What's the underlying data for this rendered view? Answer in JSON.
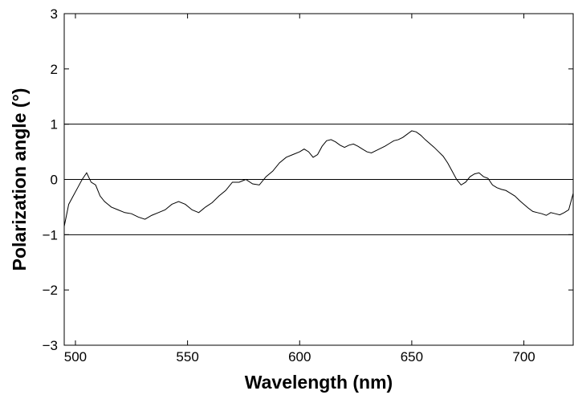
{
  "chart_data": {
    "type": "line",
    "xlabel": "Wavelength (nm)",
    "ylabel": "Polarization angle (°)",
    "xlim": [
      495,
      722
    ],
    "ylim": [
      -3,
      3
    ],
    "x_ticks": [
      500,
      550,
      600,
      650,
      700
    ],
    "x_tick_labels": [
      "500",
      "550",
      "600",
      "650",
      "700"
    ],
    "y_ticks": [
      -3,
      -2,
      -1,
      0,
      1,
      2,
      3
    ],
    "y_tick_labels": [
      "−3",
      "−2",
      "−1",
      "0",
      "1",
      "2",
      "3"
    ],
    "reference_lines": [
      1,
      0,
      -1
    ],
    "line_color": "#000000",
    "series": [
      {
        "x": [
          495,
          497,
          499,
          501,
          503,
          505,
          507,
          509,
          511,
          513,
          516,
          519,
          522,
          525,
          528,
          531,
          534,
          537,
          540,
          543,
          546,
          549,
          552,
          555,
          558,
          561,
          564,
          567,
          570,
          573,
          576,
          579,
          582,
          585,
          588,
          591,
          594,
          597,
          600,
          602,
          604,
          606,
          608,
          610,
          612,
          614,
          616,
          618,
          620,
          622,
          624,
          626,
          628,
          630,
          632,
          634,
          636,
          638,
          640,
          642,
          644,
          646,
          648,
          650,
          652,
          654,
          656,
          658,
          660,
          662,
          664,
          666,
          668,
          670,
          672,
          674,
          676,
          678,
          680,
          682,
          684,
          686,
          688,
          690,
          692,
          694,
          696,
          698,
          700,
          702,
          704,
          706,
          708,
          710,
          712,
          714,
          716,
          718,
          720,
          722
        ],
        "y": [
          -0.85,
          -0.45,
          -0.3,
          -0.15,
          0.0,
          0.12,
          -0.05,
          -0.1,
          -0.3,
          -0.4,
          -0.5,
          -0.55,
          -0.6,
          -0.62,
          -0.68,
          -0.72,
          -0.65,
          -0.6,
          -0.55,
          -0.45,
          -0.4,
          -0.45,
          -0.55,
          -0.6,
          -0.5,
          -0.42,
          -0.3,
          -0.2,
          -0.05,
          -0.05,
          -0.0,
          -0.08,
          -0.1,
          0.05,
          0.15,
          0.3,
          0.4,
          0.45,
          0.5,
          0.55,
          0.5,
          0.4,
          0.45,
          0.6,
          0.7,
          0.72,
          0.68,
          0.62,
          0.58,
          0.62,
          0.64,
          0.6,
          0.55,
          0.5,
          0.48,
          0.52,
          0.56,
          0.6,
          0.65,
          0.7,
          0.72,
          0.76,
          0.82,
          0.88,
          0.86,
          0.8,
          0.72,
          0.65,
          0.58,
          0.5,
          0.42,
          0.3,
          0.15,
          0.0,
          -0.1,
          -0.05,
          0.05,
          0.1,
          0.12,
          0.05,
          0.02,
          -0.1,
          -0.15,
          -0.18,
          -0.2,
          -0.25,
          -0.3,
          -0.38,
          -0.45,
          -0.52,
          -0.58,
          -0.6,
          -0.62,
          -0.65,
          -0.6,
          -0.62,
          -0.64,
          -0.6,
          -0.55,
          -0.25
        ]
      }
    ]
  }
}
